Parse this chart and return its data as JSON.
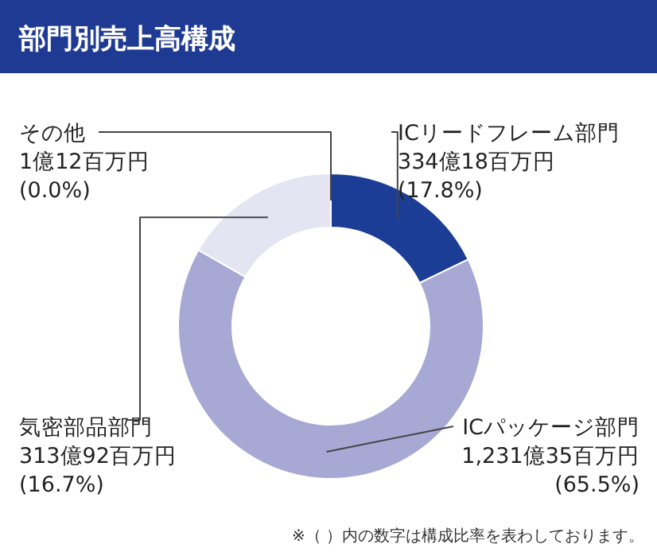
{
  "chart_data": {
    "type": "donut",
    "title": "部門別売上高構成",
    "categories": [
      "ICリードフレーム部門",
      "ICパッケージ部門",
      "気密部品部門",
      "その他"
    ],
    "values": [
      17.8,
      65.5,
      16.7,
      0.0
    ],
    "colors": [
      "#1b3d96",
      "#a8a8d5",
      "#e4e4f2",
      "#c8c8e4"
    ],
    "value_labels": [
      "334億18百万円\n(17.8%)",
      "1,231億35百万円\n(65.5%)",
      "313億92百万円\n(16.7%)",
      "1億12百万円\n(0.0%)"
    ],
    "annotations": [
      "※（ ）内の数字は構成比率を表わしております。"
    ]
  }
}
